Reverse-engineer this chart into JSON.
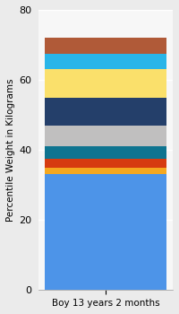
{
  "categories": [
    "Boy 13 years 2 months"
  ],
  "segments": [
    {
      "value": 33.0,
      "color": "#4D94E8"
    },
    {
      "value": 2.0,
      "color": "#F5A820"
    },
    {
      "value": 2.5,
      "color": "#D63B10"
    },
    {
      "value": 3.5,
      "color": "#0E7490"
    },
    {
      "value": 6.0,
      "color": "#C0BFBF"
    },
    {
      "value": 8.0,
      "color": "#243F6A"
    },
    {
      "value": 8.0,
      "color": "#FAE06B"
    },
    {
      "value": 4.5,
      "color": "#29B5E8"
    },
    {
      "value": 4.5,
      "color": "#B05A38"
    }
  ],
  "ylim": [
    0,
    80
  ],
  "yticks": [
    0,
    20,
    40,
    60,
    80
  ],
  "ylabel": "Percentile Weight in Kilograms",
  "background_color": "#EBEBEB",
  "plot_bg_color": "#F7F7F7",
  "bar_width": 0.38,
  "ylabel_fontsize": 7.5,
  "tick_fontsize": 8,
  "xlabel_fontsize": 7.5
}
